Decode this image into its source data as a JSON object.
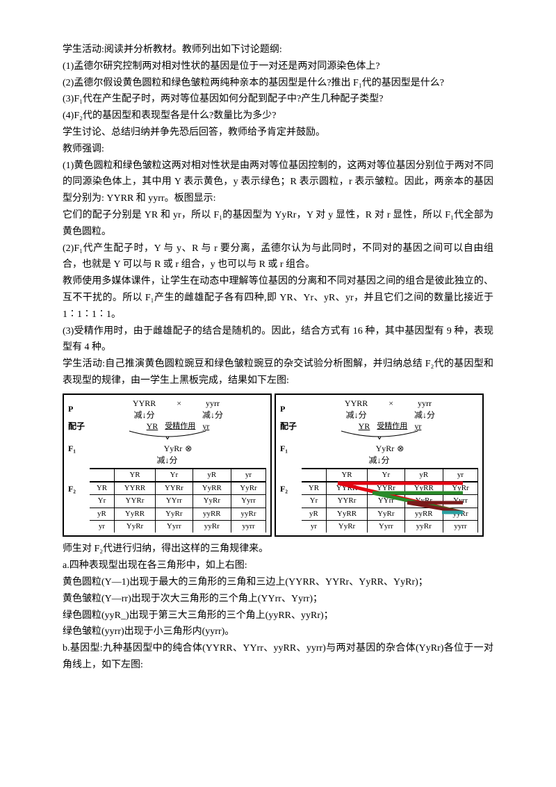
{
  "intro": {
    "line1": "学生活动:阅读并分析教材。教师列出如下讨论题纲:",
    "q1": "(1)孟德尔研究控制两对相对性状的基因是位于一对还是两对同源染色体上?",
    "q2": "(2)孟德尔假设黄色圆粒和绿色皱粒两纯种亲本的基因型是什么?推出 F₁代的基因型是什么?",
    "q3": "(3)F₁代在产生配子时，两对等位基因如何分配到配子中?产生几种配子类型?",
    "q4": "(4)F₂代的基因型和表现型各是什么?数量比为多少?",
    "line2": "学生讨论、总结归纳并争先恐后回答，教师给予肯定并鼓励。",
    "line3": "教师强调:"
  },
  "emphasis": {
    "p1a": "(1)黄色圆粒和绿色皱粒这两对相对性状是由两对等位基因控制的，这两对等位基因分别位于两对不同的同源染色体上，其中用 Y 表示黄色，y 表示绿色；R 表示圆粒，r 表示皱粒。因此，两亲本的基因型分别为: YYRR 和 yyrr。板图显示:",
    "p1b": "它们的配子分别是 YR 和 yr，所以 F₁的基因型为 YyRr，Y 对 y 显性，R 对 r 显性，所以 F₁代全部为黄色圆粒。",
    "p2": "(2)F₁代产生配子时，Y 与 y、R 与 r 要分离，孟德尔认为与此同时，不同对的基因之间可以自由组合，也就是 Y 可以与 R 或 r 组合，y 也可以与 R 或 r 组合。",
    "p3": "教师使用多媒体课件，让学生在动态中理解等位基因的分离和不同对基因之间的组合是彼此独立的、互不干扰的。所以 F₁产生的雌雄配子各有四种,即 YR、Yr、yR、yr，并且它们之间的数量比接近于 1∶1∶1∶1。",
    "p4": "(3)受精作用时，由于雌雄配子的结合是随机的。因此，结合方式有 16 种，其中基因型有 9 种，表现型有 4 种。",
    "p5": "学生活动:自己推演黄色圆粒豌豆和绿色皱粒豌豆的杂交试验分析图解，并归纳总结 F₂代的基因型和表现型的规律，由一学生上黑板完成，结果如下左图:"
  },
  "diagram": {
    "P": "P",
    "gamete_label": "配子",
    "F1": "F₁",
    "F2": "F₂",
    "YYRR": "YYRR",
    "yyrr": "yyrr",
    "cross": "×",
    "meiosis": "减↓分",
    "YR": "YR",
    "yr": "yr",
    "fertilize": "受精作用",
    "YyRr": "YyRr",
    "self": "⊗",
    "headers": [
      "",
      "YR",
      "Yr",
      "yR",
      "yr"
    ],
    "rows": [
      [
        "YR",
        "YYRR",
        "YYRr",
        "YyRR",
        "YyRr"
      ],
      [
        "Yr",
        "YYRr",
        "YYrr",
        "YyRr",
        "Yyrr"
      ],
      [
        "yR",
        "YyRR",
        "YyRr",
        "yyRR",
        "yyRr"
      ],
      [
        "yr",
        "YyRr",
        "Yyrr",
        "yyRr",
        "yyrr"
      ]
    ],
    "colors": {
      "red": "#e30613",
      "green": "#2a8a2a",
      "darkred": "#7a1a1a",
      "cyan": "#2aa0a0",
      "black": "#000000"
    }
  },
  "analysis": {
    "line1": "师生对 F₂代进行归纳，得出这样的三角规律来。",
    "line2": "a.四种表现型出现在各三角形中，如上右图:",
    "line3": "黄色圆粒(Y—1)出现于最大的三角形的三角和三边上(YYRR、YYRr、YyRR、YyRr)；",
    "line4": "黄色皱粒(Y—rr)出现于次大三角形的三个角上(YYrr、Yyrr)；",
    "line5": "绿色圆粒(yyR_)出现于第三大三角形的三个角上(yyRR、yyRr)；",
    "line6": "绿色皱粒(yyrr)出现于小三角形内(yyrr)。",
    "line7": "b.基因型:九种基因型中的纯合体(YYRR、YYrr、yyRR、yyrr)与两对基因的杂合体(YyRr)各位于一对角线上，如下左图:"
  }
}
